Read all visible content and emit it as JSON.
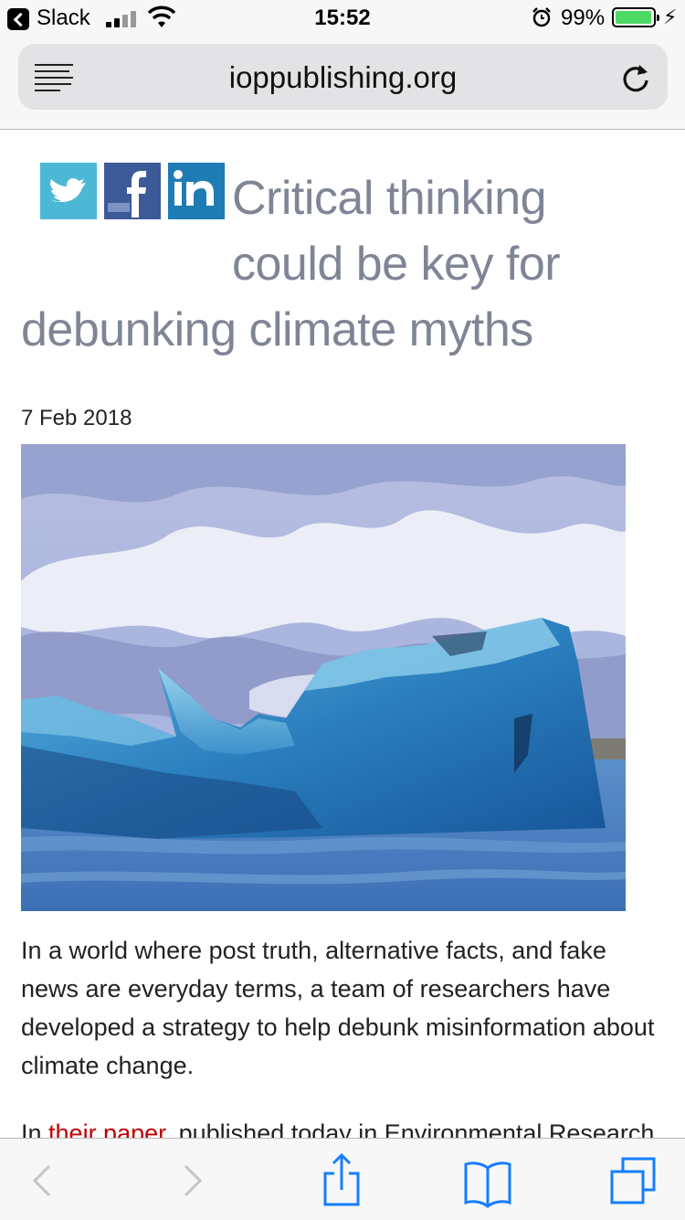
{
  "status_bar": {
    "back_app": "Slack",
    "time": "15:52",
    "battery_percent": "99%",
    "battery_level": 0.99,
    "icons": [
      "back-arrow-icon",
      "signal-icon",
      "wifi-icon",
      "alarm-icon",
      "battery-icon",
      "charging-icon"
    ]
  },
  "browser": {
    "url": "ioppublishing.org",
    "reader_icon": "reader-view-icon",
    "reload_icon": "reload-icon"
  },
  "article": {
    "share_icons": [
      "twitter-icon",
      "facebook-icon",
      "linkedin-icon"
    ],
    "title": "Critical thinking could be key for debunking climate myths",
    "date": "7 Feb 2018",
    "paragraph_1": "In a world where post truth, alternative facts, and fake news are everyday terms, a team of researchers have developed a strategy to help debunk misinformation about climate change.",
    "paragraph_2_start": "In ",
    "paragraph_2_link": "their paper",
    "paragraph_2_rest": ", published today in Environmental Research"
  },
  "toolbar": {
    "icons": [
      "back-icon",
      "forward-icon",
      "share-icon",
      "bookmarks-icon",
      "tabs-icon"
    ]
  },
  "colors": {
    "headline": "#7f8595",
    "link": "#c00000",
    "ios_blue": "#157efb",
    "battery_green": "#4cd964"
  }
}
